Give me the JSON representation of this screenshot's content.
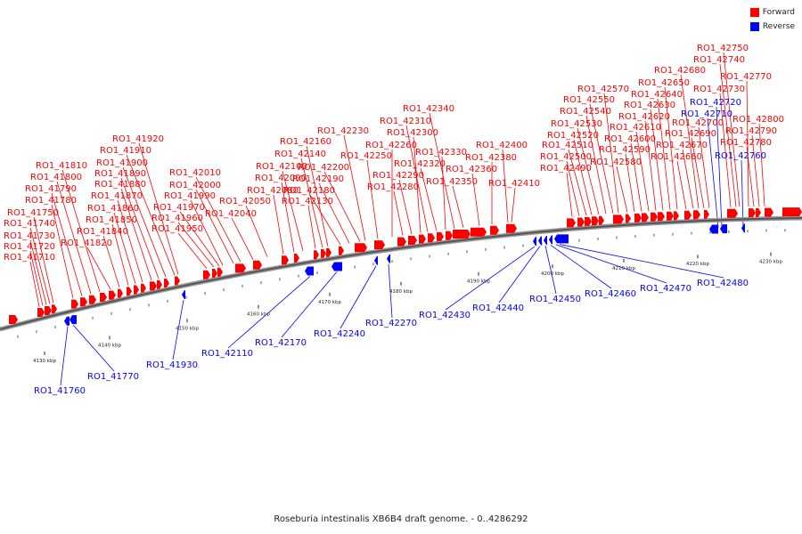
{
  "legend": {
    "forward_label": "Forward",
    "forward_color": "#ff0000",
    "reverse_label": "Reverse",
    "reverse_color": "#0000ff"
  },
  "caption": "Roseburia intestinalis XB6B4 draft genome. - 0..4286292",
  "axis_unit": "kbp",
  "ticks": [
    4130,
    4140,
    4150,
    4160,
    4170,
    4180,
    4190,
    4200,
    4210,
    4220,
    4230
  ],
  "forward_genes": [
    "RO1_41710",
    "RO1_41720",
    "RO1_41730",
    "RO1_41740",
    "RO1_41750",
    "RO1_41780",
    "RO1_41790",
    "RO1_41800",
    "RO1_41810",
    "RO1_41820",
    "RO1_41840",
    "RO1_41850",
    "RO1_41860",
    "RO1_41870",
    "RO1_41880",
    "RO1_41890",
    "RO1_41900",
    "RO1_41910",
    "RO1_41920",
    "RO1_41950",
    "RO1_41960",
    "RO1_41970",
    "RO1_41990",
    "RO1_42000",
    "RO1_42010",
    "RO1_42040",
    "RO1_42050",
    "RO1_42080",
    "RO1_42090",
    "RO1_42100",
    "RO1_42130",
    "RO1_42140",
    "RO1_42160",
    "RO1_42180",
    "RO1_42190",
    "RO1_42200",
    "RO1_42230",
    "RO1_42250",
    "RO1_42260",
    "RO1_42280",
    "RO1_42290",
    "RO1_42300",
    "RO1_42310",
    "RO1_42320",
    "RO1_42330",
    "RO1_42340",
    "RO1_42350",
    "RO1_42360",
    "RO1_42380",
    "RO1_42400",
    "RO1_42410",
    "RO1_42490",
    "RO1_42500",
    "RO1_42510",
    "RO1_42520",
    "RO1_42530",
    "RO1_42540",
    "RO1_42550",
    "RO1_42570",
    "RO1_42580",
    "RO1_42590",
    "RO1_42600",
    "RO1_42610",
    "RO1_42620",
    "RO1_42630",
    "RO1_42640",
    "RO1_42650",
    "RO1_42660",
    "RO1_42670",
    "RO1_42680",
    "RO1_42690",
    "RO1_42700",
    "RO1_42730",
    "RO1_42740",
    "RO1_42750",
    "RO1_42770",
    "RO1_42780",
    "RO1_42790",
    "RO1_42800"
  ],
  "reverse_genes": [
    "RO1_41760",
    "RO1_41770",
    "RO1_41930",
    "RO1_42110",
    "RO1_42170",
    "RO1_42240",
    "RO1_42270",
    "RO1_42430",
    "RO1_42440",
    "RO1_42450",
    "RO1_42460",
    "RO1_42470",
    "RO1_42480",
    "RO1_42710",
    "RO1_42720",
    "RO1_42760"
  ]
}
